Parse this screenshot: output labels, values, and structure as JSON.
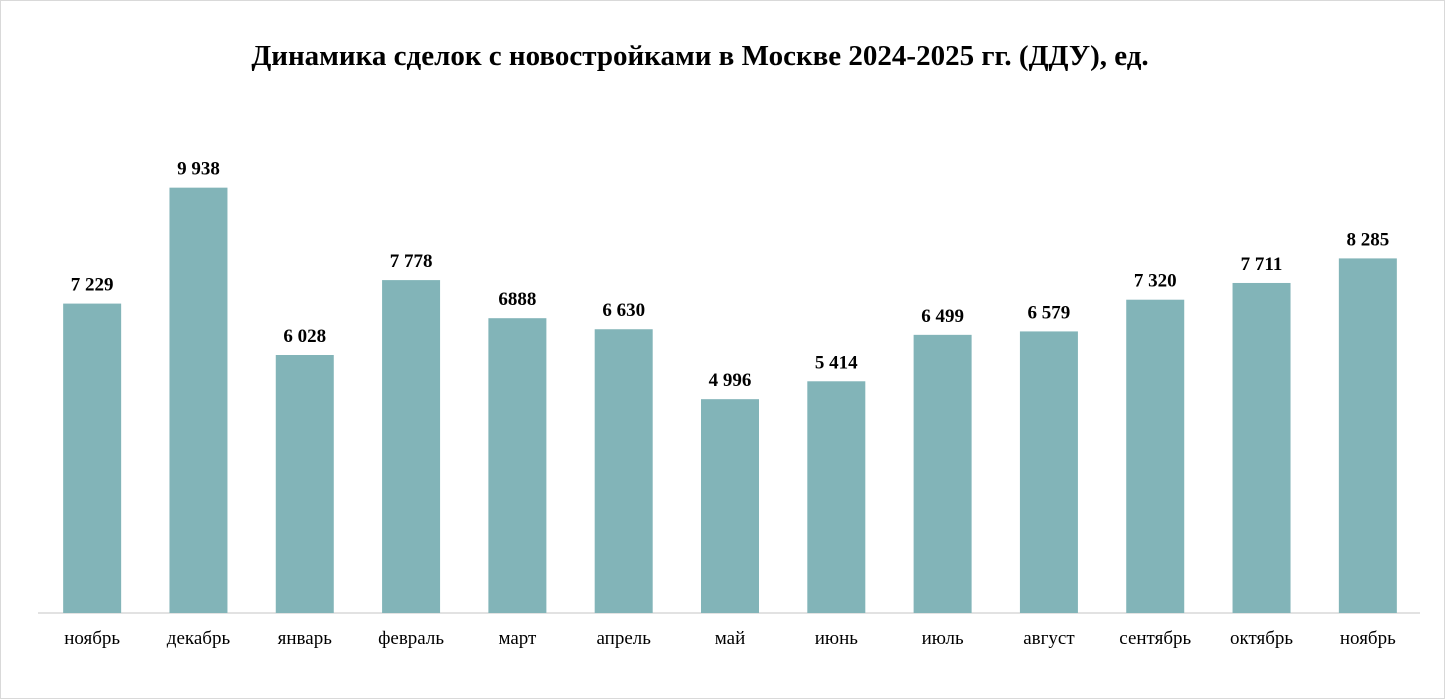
{
  "chart_data": {
    "type": "bar",
    "title": "Динамика сделок с новостройками в Москве 2024-2025 гг. (ДДУ), ед.",
    "xlabel": "",
    "ylabel": "",
    "categories": [
      "ноябрь",
      "декабрь",
      "январь",
      "февраль",
      "март",
      "апрель",
      "май",
      "июнь",
      "июль",
      "август",
      "сентябрь",
      "октябрь",
      "ноябрь"
    ],
    "values": [
      7229,
      9938,
      6028,
      7778,
      6888,
      6630,
      4996,
      5414,
      6499,
      6579,
      7320,
      7711,
      8285
    ],
    "data_labels": [
      "7 229",
      "9 938",
      "6 028",
      "7 778",
      "6888",
      "6 630",
      "4 996",
      "5 414",
      "6 499",
      "6 579",
      "7 320",
      "7 711",
      "8 285"
    ],
    "ylim": [
      0,
      10000
    ],
    "grid": false,
    "legend": "none",
    "bar_color": "#82b4b8",
    "axis_color": "#d9d9d9"
  }
}
